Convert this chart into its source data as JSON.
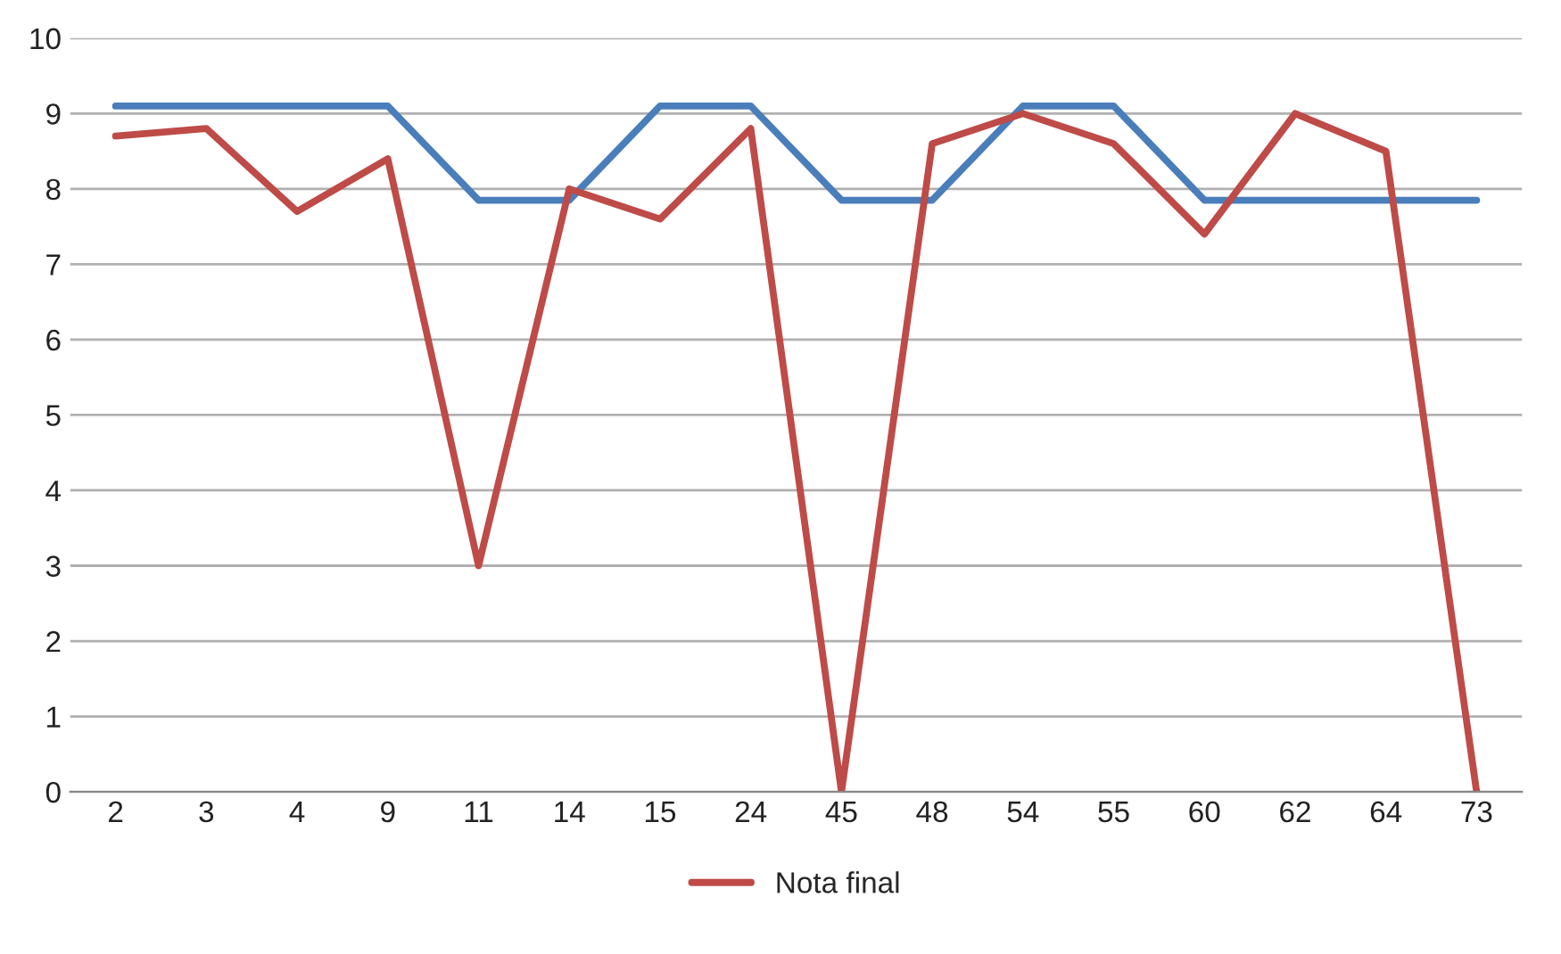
{
  "chart_data": {
    "type": "line",
    "categories": [
      "2",
      "3",
      "4",
      "9",
      "11",
      "14",
      "15",
      "24",
      "45",
      "48",
      "54",
      "55",
      "60",
      "62",
      "64",
      "73"
    ],
    "series": [
      {
        "color": "#4a7ebb",
        "values": [
          9.1,
          9.1,
          9.1,
          9.1,
          7.85,
          7.85,
          9.1,
          9.1,
          7.85,
          7.85,
          9.1,
          9.1,
          7.85,
          7.85,
          7.85,
          7.85
        ]
      },
      {
        "name": "Nota final",
        "color": "#be4b48",
        "values": [
          8.7,
          8.8,
          7.7,
          8.4,
          3.0,
          8.0,
          7.6,
          8.8,
          0,
          8.6,
          9.0,
          8.6,
          7.4,
          9.0,
          8.5,
          0
        ]
      }
    ],
    "ylim": [
      0,
      10
    ],
    "yticks": [
      0,
      1,
      2,
      3,
      4,
      5,
      6,
      7,
      8,
      9,
      10
    ],
    "grid": "y",
    "legend": "bottom",
    "marker": "none",
    "line_style": "solid"
  }
}
